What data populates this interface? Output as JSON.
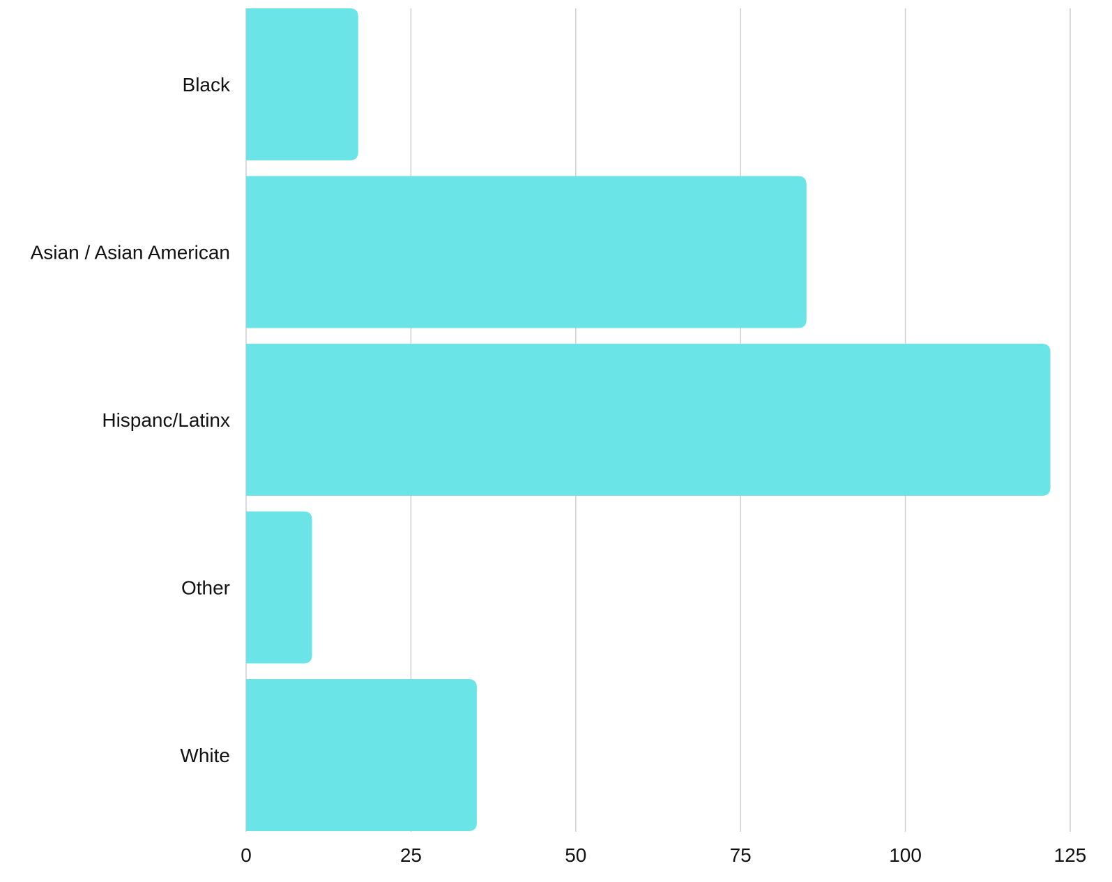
{
  "chart_data": {
    "type": "bar",
    "orientation": "horizontal",
    "categories": [
      "Black",
      "Asian / Asian American",
      "Hispanc/Latinx",
      "Other",
      "White"
    ],
    "values": [
      17,
      85,
      122,
      10,
      35
    ],
    "xlim": [
      0,
      125
    ],
    "xticks": [
      0,
      25,
      50,
      75,
      100,
      125
    ],
    "title": "",
    "xlabel": "",
    "ylabel": "",
    "grid": "vertical",
    "legend": "none",
    "colors": {
      "bar": "#6be4e8",
      "grid": "#cfcfcf",
      "text": "#111111"
    }
  }
}
